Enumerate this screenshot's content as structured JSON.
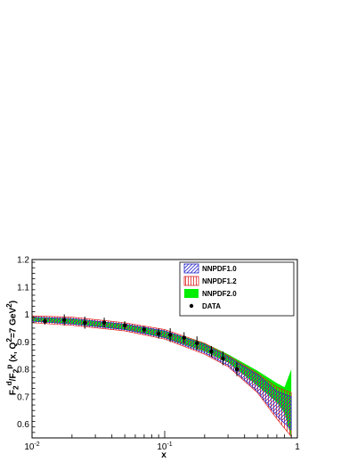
{
  "chart_data": {
    "type": "line",
    "xscale": "log",
    "xlim": [
      0.01,
      1
    ],
    "ylim": [
      0.55,
      1.2
    ],
    "xlabel": "x",
    "ylabel_html": "F<sub>2</sub><sup>d</sup>/F<sub>2</sub><sup>p</sup> (x, Q<sup>2</sup>=7 GeV<sup>2</sup>)",
    "ylabel": "F2d/F2p (x, Q2=7 GeV2)",
    "x_tick_labels": [
      "10-2",
      "10-1",
      "1"
    ],
    "y_ticks": [
      0.6,
      0.7,
      0.8,
      0.9,
      1,
      1.1,
      1.2
    ],
    "y_tick_labels": [
      "0.6",
      "0.7",
      "0.8",
      "0.9",
      "1",
      "1.1",
      "1.2"
    ],
    "legend": {
      "placement": "top-right",
      "entries": [
        "NNPDF1.0",
        "NNPDF1.2",
        "NNPDF2.0",
        "DATA"
      ]
    },
    "bands": [
      {
        "name": "NNPDF1.0",
        "color": "#2b2bcc",
        "pattern": "diagonal-hatch",
        "x": [
          0.01,
          0.02,
          0.05,
          0.1,
          0.2,
          0.3,
          0.5,
          0.7,
          0.9
        ],
        "upper": [
          0.99,
          0.985,
          0.965,
          0.94,
          0.89,
          0.845,
          0.78,
          0.72,
          0.7
        ],
        "lower": [
          0.975,
          0.965,
          0.945,
          0.915,
          0.86,
          0.815,
          0.72,
          0.63,
          0.58
        ]
      },
      {
        "name": "NNPDF1.2",
        "color": "#dd2222",
        "pattern": "vertical-hatch",
        "x": [
          0.01,
          0.02,
          0.05,
          0.1,
          0.2,
          0.3,
          0.5,
          0.7,
          0.9
        ],
        "upper": [
          0.995,
          0.99,
          0.97,
          0.945,
          0.895,
          0.85,
          0.785,
          0.735,
          0.715
        ],
        "lower": [
          0.97,
          0.96,
          0.94,
          0.91,
          0.855,
          0.81,
          0.715,
          0.62,
          0.555
        ]
      },
      {
        "name": "NNPDF2.0",
        "color": "#00ee00",
        "pattern": "solid",
        "x": [
          0.01,
          0.02,
          0.05,
          0.1,
          0.2,
          0.3,
          0.5,
          0.7,
          0.8,
          0.9
        ],
        "upper": [
          0.99,
          0.985,
          0.965,
          0.94,
          0.895,
          0.855,
          0.795,
          0.75,
          0.735,
          0.8
        ],
        "lower": [
          0.975,
          0.965,
          0.945,
          0.915,
          0.865,
          0.825,
          0.74,
          0.68,
          0.64,
          0.55
        ]
      }
    ],
    "data": {
      "name": "DATA",
      "x": [
        0.0125,
        0.0175,
        0.025,
        0.035,
        0.05,
        0.07,
        0.09,
        0.11,
        0.14,
        0.175,
        0.225,
        0.275,
        0.35
      ],
      "y": [
        0.975,
        0.98,
        0.97,
        0.97,
        0.96,
        0.945,
        0.93,
        0.925,
        0.915,
        0.895,
        0.865,
        0.84,
        0.8
      ],
      "err": [
        0.012,
        0.02,
        0.022,
        0.018,
        0.015,
        0.012,
        0.018,
        0.025,
        0.02,
        0.025,
        0.02,
        0.025,
        0.025
      ]
    }
  }
}
